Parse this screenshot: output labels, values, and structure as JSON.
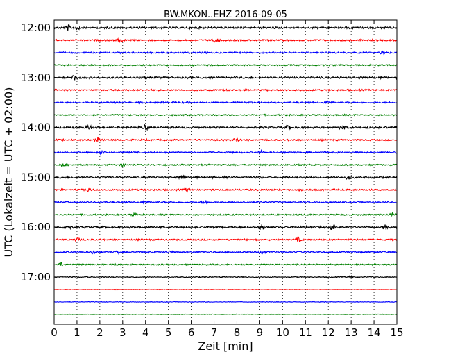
{
  "chart_data": {
    "type": "line",
    "title": "BW.MKON..EHZ 2016-09-05",
    "xlabel": "Zeit  [min]",
    "ylabel": "UTC (Lokalzeit = UTC + 02:00)",
    "xlim": [
      0,
      15
    ],
    "x_ticks": [
      "0",
      "1",
      "2",
      "3",
      "4",
      "5",
      "6",
      "7",
      "8",
      "9",
      "10",
      "11",
      "12",
      "13",
      "14",
      "15"
    ],
    "y_ticks": [
      "12:00",
      "13:00",
      "14:00",
      "15:00",
      "16:00",
      "17:00"
    ],
    "grid": "vertical dotted",
    "color_cycle": [
      "#000000",
      "#ff0000",
      "#0000ff",
      "#008000"
    ],
    "traces": [
      {
        "start": "12:00",
        "amplitude": 1.0,
        "events": [
          0.6,
          1.0
        ]
      },
      {
        "start": "12:15",
        "amplitude": 0.8,
        "events": [
          2.9,
          7.1
        ]
      },
      {
        "start": "12:30",
        "amplitude": 0.8,
        "events": [
          14.4
        ]
      },
      {
        "start": "12:45",
        "amplitude": 0.7,
        "events": []
      },
      {
        "start": "13:00",
        "amplitude": 1.0,
        "events": [
          0.9
        ]
      },
      {
        "start": "13:15",
        "amplitude": 0.8,
        "events": []
      },
      {
        "start": "13:30",
        "amplitude": 0.8,
        "events": [
          12.0
        ]
      },
      {
        "start": "13:45",
        "amplitude": 0.7,
        "events": []
      },
      {
        "start": "14:00",
        "amplitude": 1.0,
        "events": [
          1.5,
          4.0,
          10.3,
          12.6
        ]
      },
      {
        "start": "14:15",
        "amplitude": 0.8,
        "events": [
          1.9,
          8.0
        ]
      },
      {
        "start": "14:30",
        "amplitude": 0.8,
        "events": [
          2.1,
          9.0
        ]
      },
      {
        "start": "14:45",
        "amplitude": 0.7,
        "events": [
          0.4,
          3.0
        ]
      },
      {
        "start": "15:00",
        "amplitude": 1.0,
        "events": [
          5.6,
          12.9
        ]
      },
      {
        "start": "15:15",
        "amplitude": 0.8,
        "events": [
          1.5,
          5.8
        ]
      },
      {
        "start": "15:30",
        "amplitude": 0.8,
        "events": [
          4.0,
          6.6
        ]
      },
      {
        "start": "15:45",
        "amplitude": 0.7,
        "events": [
          3.5,
          14.8
        ]
      },
      {
        "start": "16:00",
        "amplitude": 1.0,
        "events": [
          0.6,
          9.1,
          12.2,
          14.5
        ]
      },
      {
        "start": "16:15",
        "amplitude": 0.8,
        "events": [
          1.0,
          10.7
        ]
      },
      {
        "start": "16:30",
        "amplitude": 0.8,
        "events": [
          1.7,
          2.8,
          5.0,
          9.1
        ]
      },
      {
        "start": "16:45",
        "amplitude": 0.7,
        "events": [
          0.3
        ]
      },
      {
        "start": "17:00",
        "amplitude": 0.5,
        "events": [
          13.0
        ]
      },
      {
        "start": "17:15",
        "amplitude": 0.3,
        "events": []
      },
      {
        "start": "17:30",
        "amplitude": 0.3,
        "events": []
      },
      {
        "start": "17:45",
        "amplitude": 0.3,
        "events": []
      }
    ]
  }
}
